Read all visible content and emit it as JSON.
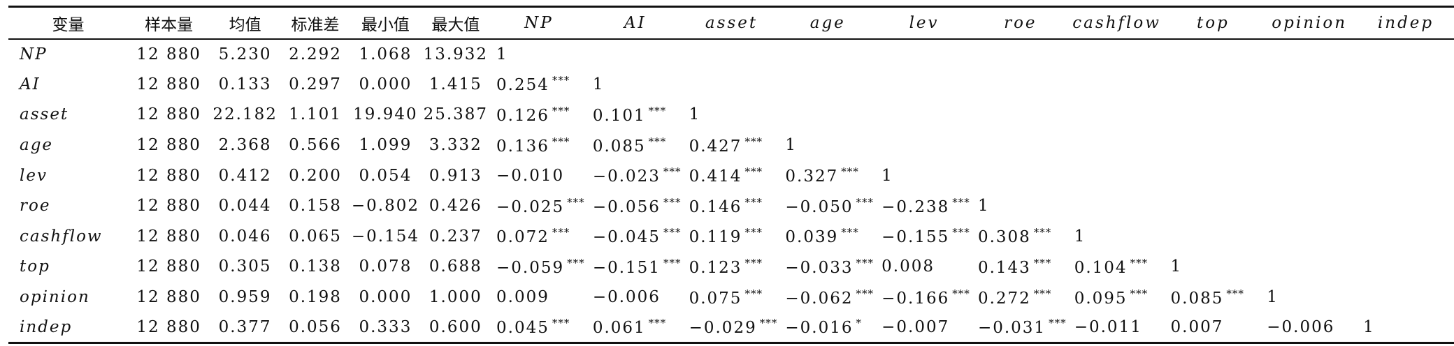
{
  "headers": {
    "variable": "变量",
    "n": "样本量",
    "mean": "均值",
    "sd": "标准差",
    "min": "最小值",
    "max": "最大值",
    "corr": [
      "NP",
      "AI",
      "asset",
      "age",
      "lev",
      "roe",
      "cashflow",
      "top",
      "opinion",
      "indep"
    ]
  },
  "rows": [
    {
      "var": "NP",
      "n": "12 880",
      "mean": "5.230",
      "sd": "2.292",
      "min": "1.068",
      "max": "13.932",
      "corr": [
        {
          "v": "1",
          "s": ""
        }
      ]
    },
    {
      "var": "AI",
      "n": "12 880",
      "mean": "0.133",
      "sd": "0.297",
      "min": "0.000",
      "max": "1.415",
      "corr": [
        {
          "v": "0.254",
          "s": "***"
        },
        {
          "v": "1",
          "s": ""
        }
      ]
    },
    {
      "var": "asset",
      "n": "12 880",
      "mean": "22.182",
      "sd": "1.101",
      "min": "19.940",
      "max": "25.387",
      "corr": [
        {
          "v": "0.126",
          "s": "***"
        },
        {
          "v": "0.101",
          "s": "***"
        },
        {
          "v": "1",
          "s": ""
        }
      ]
    },
    {
      "var": "age",
      "n": "12 880",
      "mean": "2.368",
      "sd": "0.566",
      "min": "1.099",
      "max": "3.332",
      "corr": [
        {
          "v": "0.136",
          "s": "***"
        },
        {
          "v": "0.085",
          "s": "***"
        },
        {
          "v": "0.427",
          "s": "***"
        },
        {
          "v": "1",
          "s": ""
        }
      ]
    },
    {
      "var": "lev",
      "n": "12 880",
      "mean": "0.412",
      "sd": "0.200",
      "min": "0.054",
      "max": "0.913",
      "corr": [
        {
          "v": "−0.010",
          "s": ""
        },
        {
          "v": "−0.023",
          "s": "***"
        },
        {
          "v": "0.414",
          "s": "***"
        },
        {
          "v": "0.327",
          "s": "***"
        },
        {
          "v": "1",
          "s": ""
        }
      ]
    },
    {
      "var": "roe",
      "n": "12 880",
      "mean": "0.044",
      "sd": "0.158",
      "min": "−0.802",
      "max": "0.426",
      "corr": [
        {
          "v": "−0.025",
          "s": "***"
        },
        {
          "v": "−0.056",
          "s": "***"
        },
        {
          "v": "0.146",
          "s": "***"
        },
        {
          "v": "−0.050",
          "s": "***"
        },
        {
          "v": "−0.238",
          "s": "***"
        },
        {
          "v": "1",
          "s": ""
        }
      ]
    },
    {
      "var": "cashflow",
      "n": "12 880",
      "mean": "0.046",
      "sd": "0.065",
      "min": "−0.154",
      "max": "0.237",
      "corr": [
        {
          "v": "0.072",
          "s": "***"
        },
        {
          "v": "−0.045",
          "s": "***"
        },
        {
          "v": "0.119",
          "s": "***"
        },
        {
          "v": "0.039",
          "s": "***"
        },
        {
          "v": "−0.155",
          "s": "***"
        },
        {
          "v": "0.308",
          "s": "***"
        },
        {
          "v": "1",
          "s": ""
        }
      ]
    },
    {
      "var": "top",
      "n": "12 880",
      "mean": "0.305",
      "sd": "0.138",
      "min": "0.078",
      "max": "0.688",
      "corr": [
        {
          "v": "−0.059",
          "s": "***"
        },
        {
          "v": "−0.151",
          "s": "***"
        },
        {
          "v": "0.123",
          "s": "***"
        },
        {
          "v": "−0.033",
          "s": "***"
        },
        {
          "v": "0.008",
          "s": ""
        },
        {
          "v": "0.143",
          "s": "***"
        },
        {
          "v": "0.104",
          "s": "***"
        },
        {
          "v": "1",
          "s": ""
        }
      ]
    },
    {
      "var": "opinion",
      "n": "12 880",
      "mean": "0.959",
      "sd": "0.198",
      "min": "0.000",
      "max": "1.000",
      "corr": [
        {
          "v": "0.009",
          "s": ""
        },
        {
          "v": "−0.006",
          "s": ""
        },
        {
          "v": "0.075",
          "s": "***"
        },
        {
          "v": "−0.062",
          "s": "***"
        },
        {
          "v": "−0.166",
          "s": "***"
        },
        {
          "v": "0.272",
          "s": "***"
        },
        {
          "v": "0.095",
          "s": "***"
        },
        {
          "v": "0.085",
          "s": "***"
        },
        {
          "v": "1",
          "s": ""
        }
      ]
    },
    {
      "var": "indep",
      "n": "12 880",
      "mean": "0.377",
      "sd": "0.056",
      "min": "0.333",
      "max": "0.600",
      "corr": [
        {
          "v": "0.045",
          "s": "***"
        },
        {
          "v": "0.061",
          "s": "***"
        },
        {
          "v": "−0.029",
          "s": "***"
        },
        {
          "v": "−0.016",
          "s": "*"
        },
        {
          "v": "−0.007",
          "s": ""
        },
        {
          "v": "−0.031",
          "s": "***"
        },
        {
          "v": "−0.011",
          "s": ""
        },
        {
          "v": "0.007",
          "s": ""
        },
        {
          "v": "−0.006",
          "s": ""
        },
        {
          "v": "1",
          "s": ""
        }
      ]
    }
  ]
}
